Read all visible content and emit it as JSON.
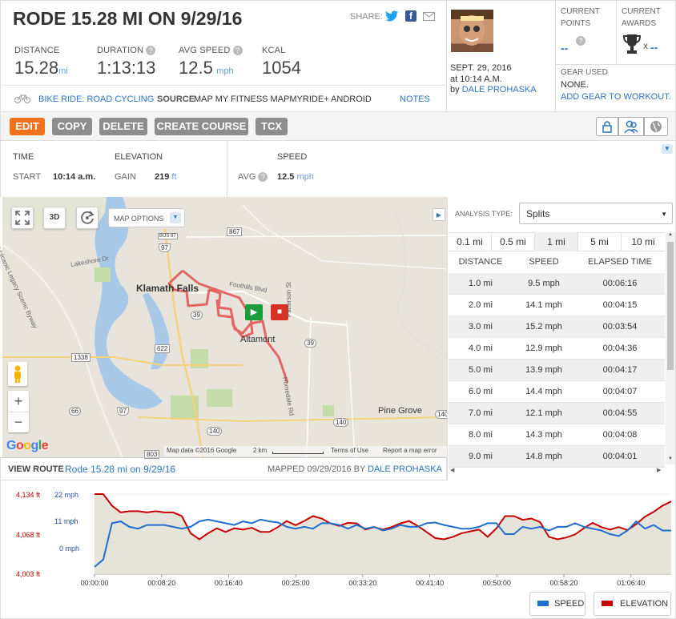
{
  "title": "RODE 15.28 MI ON 9/29/16",
  "share_label": "SHARE:",
  "stats": [
    {
      "label": "DISTANCE",
      "value": "15.28",
      "unit": "mi",
      "help": false
    },
    {
      "label": "DURATION",
      "value": "1:13:13",
      "unit": "",
      "help": true
    },
    {
      "label": "AVG SPEED",
      "value": "12.5",
      "unit": "mph",
      "help": true
    },
    {
      "label": "KCAL",
      "value": "1054",
      "unit": "",
      "help": false
    }
  ],
  "activity": {
    "type": "BIKE RIDE: ROAD CYCLING",
    "source_label": "SOURCE",
    "source_value": "MAP MY FITNESS MAPMYRIDE+ ANDROID",
    "notes": "NOTES"
  },
  "profile": {
    "date": "SEPT. 29, 2016",
    "time": "at 10:14 A.M.",
    "by": "by",
    "user": "DALE PROHASKA"
  },
  "points": {
    "label": "CURRENT POINTS",
    "value": "--"
  },
  "awards": {
    "label": "CURRENT AWARDS",
    "x": "X",
    "value": "--"
  },
  "gear": {
    "label": "GEAR USED",
    "value": "NONE.",
    "add": "ADD GEAR TO WORKOUT."
  },
  "buttons": {
    "edit": "EDIT",
    "copy": "COPY",
    "delete": "DELETE",
    "create_course": "CREATE COURSE",
    "tcx": "TCX"
  },
  "details": {
    "time_h": "TIME",
    "start_label": "START",
    "start_value": "10:14 a.m.",
    "elev_h": "ELEVATION",
    "gain_label": "GAIN",
    "gain_value": "219",
    "gain_unit": "ft",
    "speed_h": "SPEED",
    "avg_label": "AVG",
    "avg_value": "12.5",
    "avg_unit": "mph"
  },
  "map": {
    "options": "MAP OPTIONS",
    "three_d": "3D",
    "places": [
      "Klamath Falls",
      "Altamont",
      "Pine Grove",
      "Lakeshore Dr",
      "Foothills Blvd",
      "Patterson St",
      "Homedale Rd",
      "Volcanic Legacy Scenic Byway"
    ],
    "shields": [
      "867",
      "97",
      "39",
      "622",
      "1338",
      "66",
      "97",
      "140",
      "140",
      "39",
      "140",
      "803",
      "BUS 97"
    ],
    "google": "Google",
    "attribution": "Map data ©2016 Google",
    "scale": "2 km",
    "terms": "Terms of Use",
    "report": "Report a map error",
    "zoom_in": "+",
    "zoom_out": "−"
  },
  "analysis": {
    "type_label": "ANALYSIS TYPE:",
    "type_value": "Splits",
    "tabs": [
      "0.1 mi",
      "0.5 mi",
      "1 mi",
      "5 mi",
      "10 mi"
    ],
    "headers": [
      "DISTANCE",
      "SPEED",
      "ELAPSED TIME"
    ],
    "rows": [
      [
        "1.0 mi",
        "9.5 mph",
        "00:06:16"
      ],
      [
        "2.0 mi",
        "14.1 mph",
        "00:04:15"
      ],
      [
        "3.0 mi",
        "15.2 mph",
        "00:03:54"
      ],
      [
        "4.0 mi",
        "12.9 mph",
        "00:04:36"
      ],
      [
        "5.0 mi",
        "13.9 mph",
        "00:04:17"
      ],
      [
        "6.0 mi",
        "14.4 mph",
        "00:04:07"
      ],
      [
        "7.0 mi",
        "12.1 mph",
        "00:04:55"
      ],
      [
        "8.0 mi",
        "14.3 mph",
        "00:04:08"
      ],
      [
        "9.0 mi",
        "14.8 mph",
        "00:04:01"
      ]
    ]
  },
  "route": {
    "label": "VIEW ROUTE",
    "name": "Rode 15.28 mi on 9/29/16",
    "mapped": "MAPPED 09/29/2016 BY",
    "user": "DALE PROHASKA"
  },
  "chart_data": {
    "type": "line",
    "x_ticks": [
      "00:00:00",
      "00:08:20",
      "00:16:40",
      "00:25:00",
      "00:33:20",
      "00:41:40",
      "00:50:00",
      "00:58:20",
      "01:06:40"
    ],
    "elev_ticks": [
      "4,134 ft",
      "4,068 ft",
      "4,003 ft"
    ],
    "speed_ticks": [
      "22 mph",
      "11 mph",
      "0 mph"
    ],
    "elev_ylim": [
      4003,
      4134
    ],
    "speed_ylim": [
      0,
      22
    ],
    "series": [
      {
        "name": "SPEED",
        "color": "#1e6fd0",
        "values": [
          2,
          4,
          14,
          14.5,
          13,
          12.5,
          13.5,
          13.5,
          13.5,
          13,
          12.5,
          13,
          14.5,
          15,
          14.5,
          14,
          13.5,
          14.5,
          14,
          15,
          14.5,
          14.2,
          13,
          12.5,
          13,
          12.5,
          14,
          14,
          13.5,
          12.5,
          13.5,
          12.5,
          13,
          12,
          12.5,
          13.5,
          13,
          13,
          14,
          14.2,
          13.5,
          13,
          12.5,
          12.5,
          13,
          14,
          14,
          11,
          11,
          13,
          12.5,
          13,
          12,
          13,
          13,
          14,
          13,
          12.5,
          12,
          11,
          10.5,
          12,
          14.5,
          12.5,
          13.5,
          12,
          12
        ]
      },
      {
        "name": "ELEVATION",
        "color": "#c80000",
        "values": [
          4134,
          4134,
          4115,
          4104,
          4106,
          4106,
          4104,
          4106,
          4104,
          4104,
          4098,
          4070,
          4060,
          4070,
          4078,
          4072,
          4078,
          4076,
          4079,
          4072,
          4072,
          4080,
          4090,
          4083,
          4090,
          4098,
          4094,
          4086,
          4082,
          4087,
          4086,
          4076,
          4080,
          4076,
          4080,
          4086,
          4090,
          4082,
          4072,
          4062,
          4060,
          4064,
          4070,
          4073,
          4076,
          4064,
          4078,
          4098,
          4098,
          4092,
          4094,
          4088,
          4064,
          4060,
          4063,
          4068,
          4078,
          4087,
          4080,
          4076,
          4080,
          4075,
          4085,
          4097,
          4105,
          4115,
          4122
        ]
      }
    ]
  }
}
